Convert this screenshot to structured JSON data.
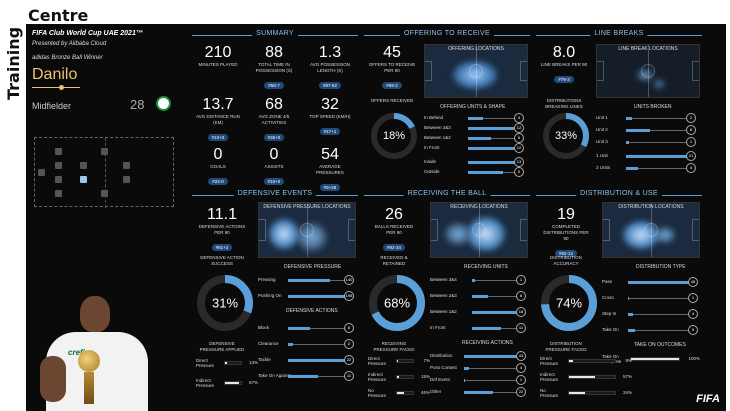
{
  "brand": {
    "vertical": "Training",
    "horizontal": "Centre"
  },
  "player": {
    "event": "FIFA Club World Cup UAE 2021™",
    "presented_by": "Presented by Alibaba Cloud",
    "award": "adidas Bronze Ball Winner",
    "name": "Danilo",
    "position": "Midfielder",
    "number": "28"
  },
  "summary": {
    "title": "SUMMARY",
    "stats": [
      {
        "value": "210",
        "label": "MINUTES PLAYED",
        "rank": ""
      },
      {
        "value": "88",
        "label": "TOTAL TIME IN POSSESSION (S)",
        "rank": "#58-7"
      },
      {
        "value": "1.3",
        "label": "AVG POSSESSION LENGTH (S)",
        "rank": "#87-82"
      },
      {
        "value": "13.7",
        "label": "AVG DISTANCE RUN (KM)",
        "rank": "#10+0"
      },
      {
        "value": "68",
        "label": "AVG ZONE 4/5 ACTIVITIES",
        "rank": "#36+0"
      },
      {
        "value": "32",
        "label": "TOP SPEED (KM/H)",
        "rank": "#47+1"
      },
      {
        "value": "0",
        "label": "GOALS",
        "rank": "#22-0"
      },
      {
        "value": "0",
        "label": "ASSISTS",
        "rank": "#16+0"
      },
      {
        "value": "54",
        "label": "AVERAGE PRESSURES",
        "rank": "#5+28"
      }
    ]
  },
  "offering": {
    "title": "OFFERING TO RECEIVE",
    "offers_value": "45",
    "offers_label": "OFFERS TO RECEIVE PER 90",
    "offers_rank": "#69-2",
    "received_label": "OFFERS RECEIVED",
    "received_pct": "18%",
    "received_fraction": 0.18,
    "locations_label": "OFFERING LOCATIONS",
    "units_title": "OFFERING UNITS & SHAPE",
    "units": [
      {
        "label": "In Behind",
        "value": "4"
      },
      {
        "label": "Between 2&3",
        "value": "12"
      },
      {
        "label": "Between 1&2",
        "value": "6"
      },
      {
        "label": "In Front",
        "value": "12"
      },
      {
        "label": "Inside",
        "value": "13"
      },
      {
        "label": "Outside",
        "value": "9"
      }
    ]
  },
  "linebreaks": {
    "title": "LINE BREAKS",
    "value": "8.0",
    "label": "LINE BREAKS PER 90",
    "rank": "#79-3",
    "dist_label": "DISTRIBUTIONS BREAKING LINES",
    "dist_pct": "33%",
    "dist_fraction": 0.33,
    "locations_label": "LINE BREAK LOCATIONS",
    "units_title": "UNITS BROKEN",
    "units": [
      {
        "label": "Unit 1",
        "value": "2"
      },
      {
        "label": "Unit 2",
        "value": "8"
      },
      {
        "label": "Unit 3",
        "value": "1"
      },
      {
        "label": "1 Unit",
        "value": "21"
      },
      {
        "label": "2 Units",
        "value": "4"
      }
    ]
  },
  "defensive": {
    "title": "DEFENSIVE EVENTS",
    "value": "11.1",
    "label": "DEFENSIVE ACTIONS PER 90",
    "rank": "#81+2",
    "success_label": "DEFENSIVE ACTION SUCCESS",
    "success_pct": "31%",
    "success_fraction": 0.31,
    "locations_label": "DEFENSIVE PRESSURE LOCATIONS",
    "pressure_title": "DEFENSIVE PRESSURE",
    "pressure": [
      {
        "label": "Pressing",
        "value": "140"
      },
      {
        "label": "Pushing On",
        "value": "198"
      }
    ],
    "actions_title": "DEFENSIVE ACTIONS",
    "actions": [
      {
        "label": "Block",
        "value": "8"
      },
      {
        "label": "Clearance",
        "value": "2"
      },
      {
        "label": "Tackle",
        "value": "22"
      },
      {
        "label": "Take On Against",
        "value": "11"
      }
    ],
    "applied_title": "DEFENSIVE PRESSURE APPLIED",
    "applied": [
      {
        "label": "Direct Pressure",
        "value": "13%"
      },
      {
        "label": "Indirect Pressure",
        "value": "87%"
      }
    ]
  },
  "receiving": {
    "title": "RECEIVING THE BALL",
    "value": "26",
    "label": "BALLS RECEIVED PER 90",
    "rank": "#92-34",
    "retained_label": "RECEIVED & RETAINED",
    "retained_pct": "68%",
    "retained_fraction": 0.68,
    "locations_label": "RECEIVING LOCATIONS",
    "units_title": "RECEIVING UNITS",
    "units": [
      {
        "label": "Between 3&4",
        "value": "1"
      },
      {
        "label": "Between 2&3",
        "value": "6"
      },
      {
        "label": "Between 1&2",
        "value": "18"
      },
      {
        "label": "In Front",
        "value": "11"
      }
    ],
    "actions_title": "RECEIVING ACTIONS",
    "actions": [
      {
        "label": "Distribution",
        "value": "43"
      },
      {
        "label": "Poss Contest",
        "value": "4"
      },
      {
        "label": "Def Event",
        "value": "1"
      },
      {
        "label": "Other",
        "value": "22"
      }
    ],
    "faced_title": "RECEIVING PRESSURE FACED",
    "faced": [
      {
        "label": "Direct Pressure",
        "value": "7%"
      },
      {
        "label": "Indirect Pressure",
        "value": "15%"
      },
      {
        "label": "No Pressure",
        "value": "46%"
      }
    ]
  },
  "distribution": {
    "title": "DISTRIBUTION & USE",
    "value": "19",
    "label": "COMPLETED DISTRIBUTIONS PER 90",
    "rank": "#92-12",
    "accuracy_label": "DISTRIBUTION ACCURACY",
    "accuracy_pct": "74%",
    "accuracy_fraction": 0.74,
    "locations_label": "DISTRIBUTION LOCATIONS",
    "type_title": "DISTRIBUTION TYPE",
    "types": [
      {
        "label": "Pass",
        "value": "48"
      },
      {
        "label": "Cross",
        "value": "1"
      },
      {
        "label": "Step In",
        "value": "4"
      },
      {
        "label": "Take On",
        "value": "5"
      }
    ],
    "takeon_title": "TAKE ON OUTCOMES",
    "takeon": [
      {
        "label": "Take On Complete",
        "value": "100%"
      }
    ],
    "faced_title": "DISTRIBUTION PRESSURE FACED",
    "faced": [
      {
        "label": "Direct Pressure",
        "value": "9%"
      },
      {
        "label": "Indirect Pressure",
        "value": "57%"
      },
      {
        "label": "No Pressure",
        "value": "34%"
      }
    ]
  },
  "footer": {
    "logo": "FIFA"
  },
  "colors": {
    "accent": "#5a9fd8",
    "gold": "#e9c46a",
    "bg": "#0a0a0b"
  }
}
